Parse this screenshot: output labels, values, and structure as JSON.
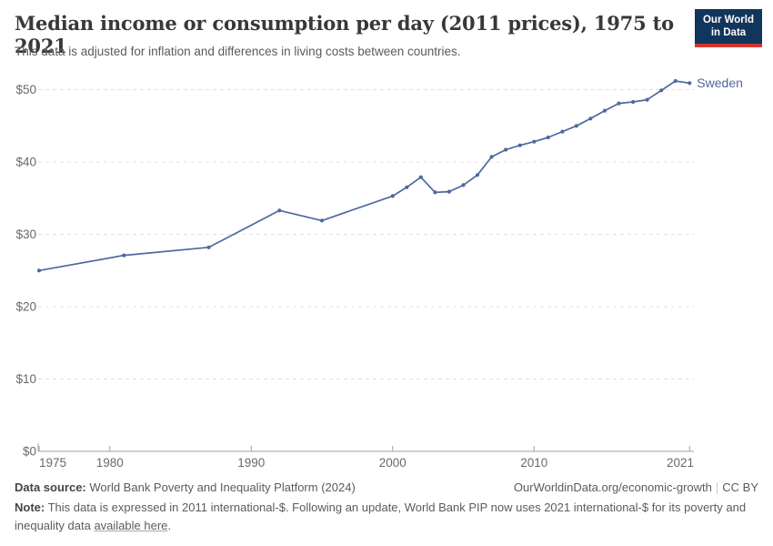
{
  "header": {
    "title": "Median income or consumption per day (2011 prices), 1975 to 2021",
    "subtitle": "This data is adjusted for inflation and differences in living costs between countries."
  },
  "logo": {
    "line1": "Our World",
    "line2": "in Data"
  },
  "chart_data": {
    "type": "line",
    "title": "Median income or consumption per day (2011 prices), 1975 to 2021",
    "xlabel": "",
    "ylabel": "",
    "xlim": [
      1975,
      2021
    ],
    "ylim": [
      0,
      50
    ],
    "x_ticks": [
      1975,
      1980,
      1990,
      2000,
      2010,
      2021
    ],
    "y_ticks": [
      0,
      10,
      20,
      30,
      40,
      50
    ],
    "y_prefix": "$",
    "grid": "horizontal-dashed",
    "legend_position": "end-of-line-label",
    "colors": {
      "line": "#4C6A9C",
      "grid": "#e0e0e0",
      "axis": "#a3a3a3",
      "tick_text": "#696969"
    },
    "series": [
      {
        "name": "Sweden",
        "color": "#4C6A9C",
        "points": [
          [
            1975,
            25.0
          ],
          [
            1981,
            27.1
          ],
          [
            1987,
            28.2
          ],
          [
            1992,
            33.3
          ],
          [
            1995,
            31.9
          ],
          [
            2000,
            35.3
          ],
          [
            2001,
            36.5
          ],
          [
            2002,
            37.9
          ],
          [
            2003,
            35.8
          ],
          [
            2004,
            35.9
          ],
          [
            2005,
            36.8
          ],
          [
            2006,
            38.2
          ],
          [
            2007,
            40.7
          ],
          [
            2008,
            41.7
          ],
          [
            2009,
            42.3
          ],
          [
            2010,
            42.8
          ],
          [
            2011,
            43.4
          ],
          [
            2012,
            44.2
          ],
          [
            2013,
            45.0
          ],
          [
            2014,
            46.0
          ],
          [
            2015,
            47.1
          ],
          [
            2016,
            48.1
          ],
          [
            2017,
            48.3
          ],
          [
            2018,
            48.6
          ],
          [
            2019,
            49.9
          ],
          [
            2020,
            51.2
          ],
          [
            2021,
            50.9
          ]
        ]
      }
    ]
  },
  "footer": {
    "datasource_label": "Data source:",
    "datasource_text": " World Bank Poverty and Inequality Platform (2024)",
    "credit": "OurWorldinData.org/economic-growth",
    "divider": "|",
    "license": "CC BY",
    "note_label": "Note:",
    "note_text": " This data is expressed in 2011 international-$. Following an update, World Bank PIP now uses 2021 international-$ for its poverty and inequality data ",
    "note_link": "available here",
    "note_suffix": "."
  }
}
